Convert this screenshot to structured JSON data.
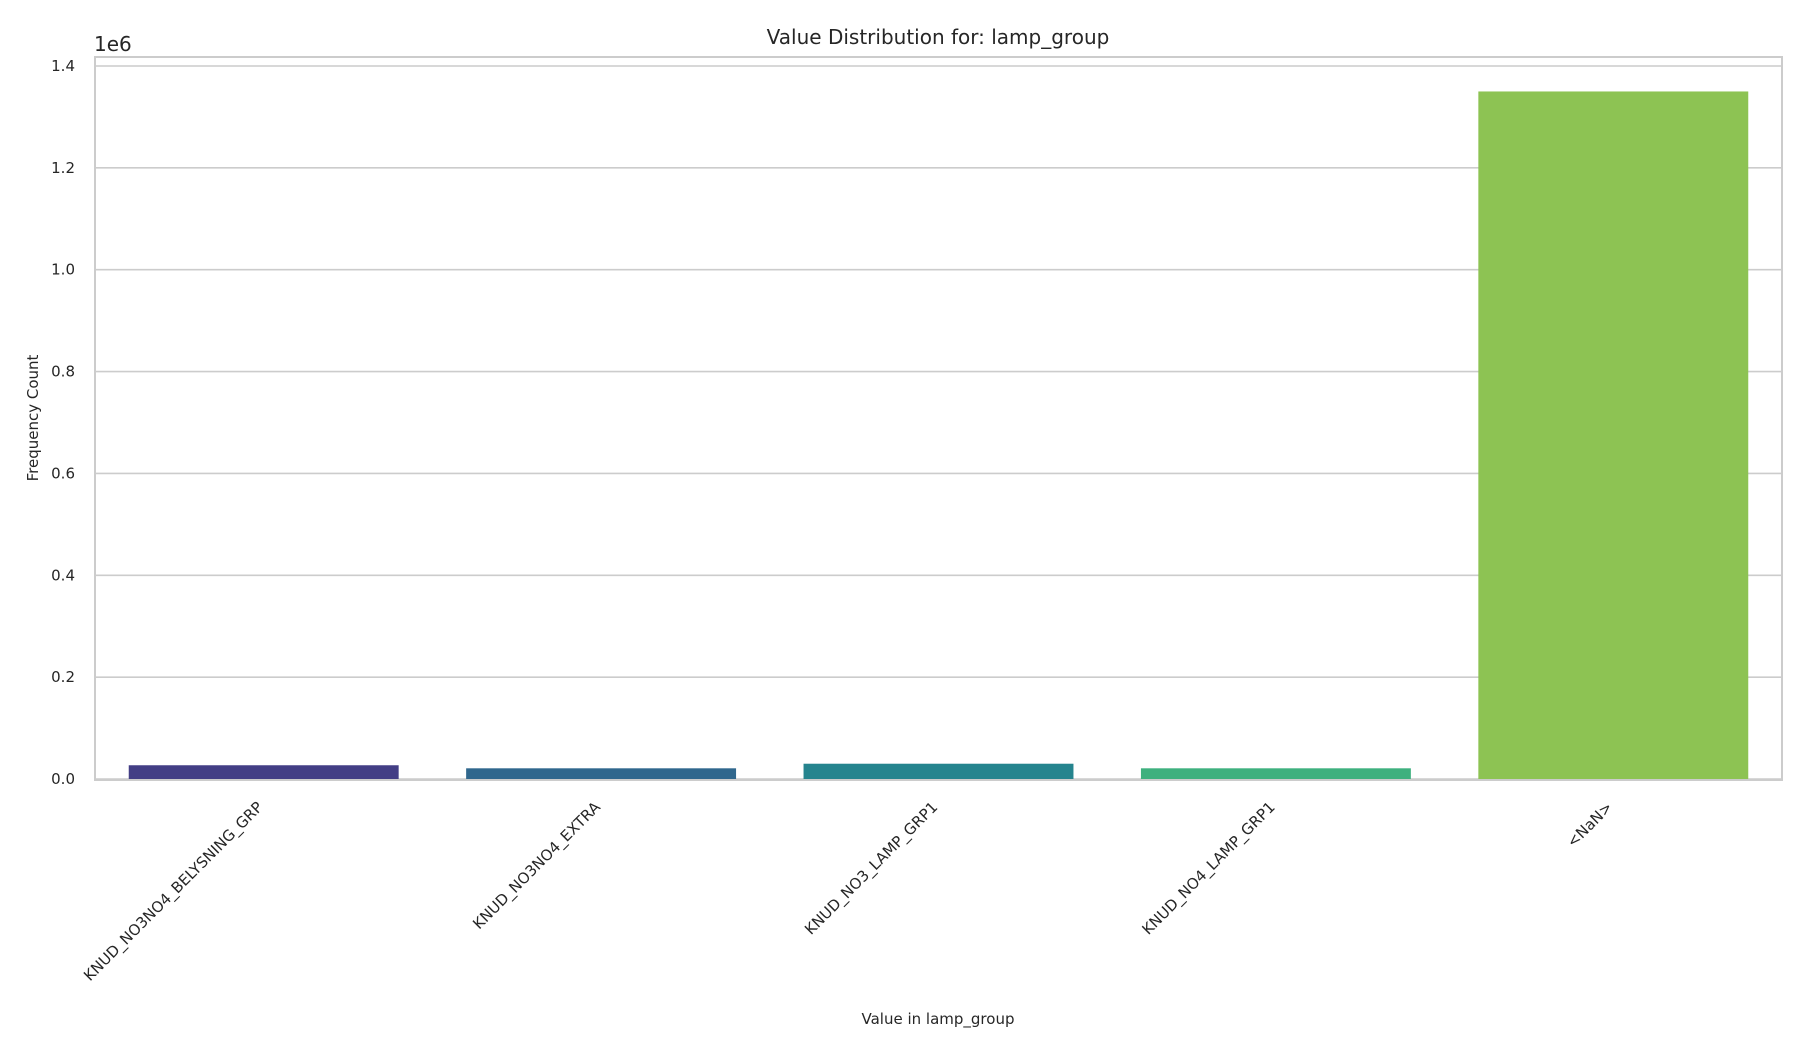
{
  "chart_data": {
    "type": "bar",
    "title": "Value Distribution for: lamp_group",
    "xlabel": "Value in lamp_group",
    "ylabel": "Frequency Count",
    "categories": [
      "KNUD_NO3NO4_BELYSNING_GRP",
      "KNUD_NO3NO4_EXTRA",
      "KNUD_NO3_LAMP_GRP1",
      "KNUD_NO4_LAMP_GRP1",
      "<NaN>"
    ],
    "values": [
      27000,
      21000,
      30000,
      21000,
      1350000
    ],
    "colors": [
      "#433e85",
      "#30678d",
      "#25848e",
      "#3eb07e",
      "#8dc353"
    ],
    "ylim": [
      0,
      1410000
    ],
    "yticks": [
      0,
      200000,
      400000,
      600000,
      800000,
      1000000,
      1200000,
      1400000
    ],
    "ytick_labels": [
      "0.0",
      "0.2",
      "0.4",
      "0.6",
      "0.8",
      "1.0",
      "1.2",
      "1.4"
    ],
    "y_offset_label": "1e6",
    "grid": true,
    "x_tick_rotation": 45
  }
}
